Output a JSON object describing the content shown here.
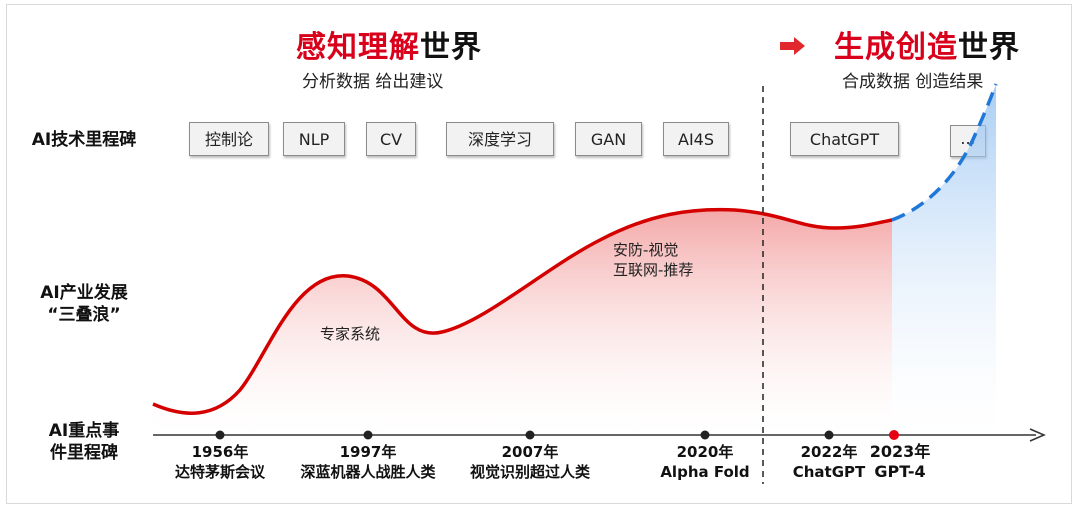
{
  "header_left": {
    "title_red": "感知理解",
    "title_black": "世界",
    "subtitle": "分析数据 给出建议"
  },
  "header_right": {
    "title_red": "生成创造",
    "title_black": "世界",
    "subtitle": "合成数据 创造结果"
  },
  "row_labels": {
    "tech": "AI技术里程碑",
    "industry_line1": "AI产业发展",
    "industry_line2": "“三叠浪”",
    "events_line1": "AI重点事",
    "events_line2": "件里程碑"
  },
  "tech_milestones": [
    "控制论",
    "NLP",
    "CV",
    "深度学习",
    "GAN",
    "AI4S",
    "ChatGPT",
    "..."
  ],
  "curve_notes": {
    "wave1": "专家系统",
    "wave3_line1": "安防-视觉",
    "wave3_line2": "互联网-推荐"
  },
  "events": [
    {
      "year": "1956年",
      "label": "达特茅斯会议"
    },
    {
      "year": "1997年",
      "label": "深蓝机器人战胜人类"
    },
    {
      "year": "2007年",
      "label": "视觉识别超过人类"
    },
    {
      "year": "2020年",
      "label": "Alpha Fold"
    },
    {
      "year": "2022年",
      "label": "ChatGPT"
    },
    {
      "year": "2023年",
      "label": "GPT-4"
    }
  ],
  "colors": {
    "accent_red": "#d9001b",
    "curve_red": "#d40000",
    "future_blue": "#1f78d8"
  }
}
